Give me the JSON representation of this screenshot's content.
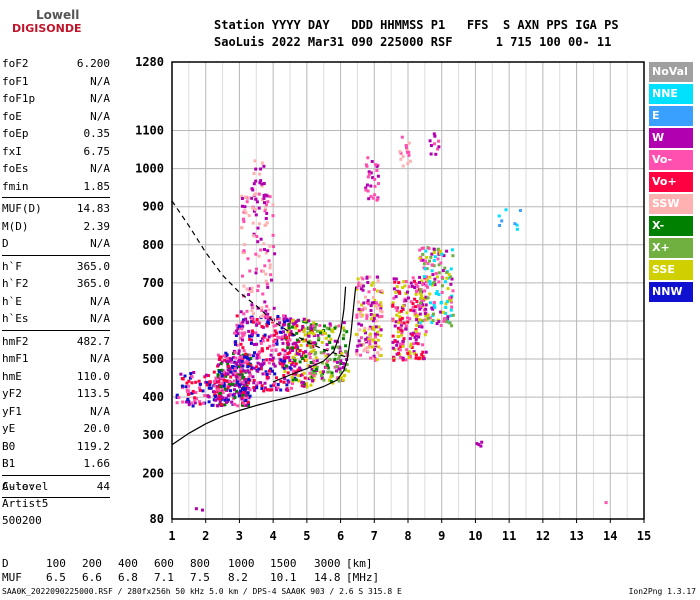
{
  "logo": {
    "line1": "Lowell",
    "line2": "DIGISONDE"
  },
  "header": {
    "line1": "Station YYYY DAY   DDD HHMMSS P1   FFS  S AXN PPS IGA PS",
    "line2": "SaoLuis 2022 Mar31 090 225000 RSF      1 715 100 00- 11"
  },
  "params": [
    {
      "label": "foF2",
      "value": "6.200"
    },
    {
      "label": "foF1",
      "value": "N/A"
    },
    {
      "label": "foF1p",
      "value": "N/A"
    },
    {
      "label": "foE",
      "value": "N/A"
    },
    {
      "label": "foEp",
      "value": "0.35"
    },
    {
      "label": "fxI",
      "value": "6.75"
    },
    {
      "label": "foEs",
      "value": "N/A"
    },
    {
      "label": "fmin",
      "value": "1.85"
    },
    {
      "sep": true
    },
    {
      "label": "MUF(D)",
      "value": "14.83"
    },
    {
      "label": "M(D)",
      "value": "2.39"
    },
    {
      "label": "D",
      "value": "N/A"
    },
    {
      "sep": true
    },
    {
      "label": "h`F",
      "value": "365.0"
    },
    {
      "label": "h`F2",
      "value": "365.0"
    },
    {
      "label": "h`E",
      "value": "N/A"
    },
    {
      "label": "h`Es",
      "value": "N/A"
    },
    {
      "sep": true
    },
    {
      "label": "hmF2",
      "value": "482.7"
    },
    {
      "label": "hmF1",
      "value": "N/A"
    },
    {
      "label": "hmE",
      "value": "110.0"
    },
    {
      "label": "yF2",
      "value": "113.5"
    },
    {
      "label": "yF1",
      "value": "N/A"
    },
    {
      "label": "yE",
      "value": "20.0"
    },
    {
      "label": "B0",
      "value": "119.2"
    },
    {
      "label": "B1",
      "value": "1.66"
    },
    {
      "sep": true
    },
    {
      "label": "C-level",
      "value": "44"
    },
    {
      "sep": true
    }
  ],
  "autoscaling": {
    "line1": "Auto:",
    "line2": "Artist5",
    "line3": "500200"
  },
  "legend": [
    {
      "label": "NoVal",
      "color": "#a0a0a0"
    },
    {
      "label": "NNE",
      "color": "#00e0ff"
    },
    {
      "label": "E",
      "color": "#3aa0ff"
    },
    {
      "label": "W",
      "color": "#b000b0"
    },
    {
      "label": "Vo-",
      "color": "#ff50b0"
    },
    {
      "label": "Vo+",
      "color": "#ff0040"
    },
    {
      "label": "SSW",
      "color": "#ffb0b0"
    },
    {
      "label": "X-",
      "color": "#008000"
    },
    {
      "label": "X+",
      "color": "#70b040"
    },
    {
      "label": "SSE",
      "color": "#d0d000"
    },
    {
      "label": "NNW",
      "color": "#1010d0"
    }
  ],
  "muf_table": {
    "d_label": "D",
    "d_values": [
      "100",
      "200",
      "400",
      "600",
      "800",
      "1000",
      "1500",
      "3000"
    ],
    "d_unit": "[km]",
    "muf_label": "MUF",
    "muf_values": [
      "6.5",
      "6.6",
      "6.8",
      "7.1",
      "7.5",
      "8.2",
      "10.1",
      "14.8"
    ],
    "muf_unit": "[MHz]"
  },
  "footer": {
    "left": "SAA0K_2022090225000.RSF / 280fx256h 50 kHz 5.0 km / DPS-4 SAA0K 903 / 2.6 S 315.8 E",
    "right": "Ion2Png 1.3.17"
  },
  "chart_data": {
    "type": "scatter",
    "x_ticks": [
      1,
      2,
      3,
      4,
      5,
      6,
      7,
      8,
      9,
      10,
      11,
      12,
      13,
      14,
      15
    ],
    "y_ticks": [
      80,
      200,
      300,
      400,
      500,
      600,
      700,
      800,
      900,
      1000,
      1100,
      1280
    ],
    "xlim": [
      1,
      15
    ],
    "ylim": [
      80,
      1280
    ],
    "grid": true,
    "echo_clusters": [
      {
        "fmin": 1.1,
        "fmax": 2.5,
        "hmin": 380,
        "hmax": 470,
        "n": 110,
        "colors": [
          "#b000b0",
          "#ff0040",
          "#1010d0",
          "#ff50b0"
        ]
      },
      {
        "fmin": 2.3,
        "fmax": 3.3,
        "hmin": 380,
        "hmax": 520,
        "n": 240,
        "colors": [
          "#b000b0",
          "#ff0040",
          "#ff50b0",
          "#1010d0",
          "#008000"
        ]
      },
      {
        "fmin": 2.8,
        "fmax": 4.6,
        "hmin": 420,
        "hmax": 620,
        "n": 320,
        "colors": [
          "#b000b0",
          "#ff50b0",
          "#ff0040",
          "#1010d0"
        ]
      },
      {
        "fmin": 3.0,
        "fmax": 4.0,
        "hmin": 600,
        "hmax": 940,
        "n": 120,
        "colors": [
          "#b000b0",
          "#ff50b0",
          "#ffb0b0"
        ]
      },
      {
        "fmin": 3.3,
        "fmax": 3.7,
        "hmin": 900,
        "hmax": 1030,
        "n": 25,
        "colors": [
          "#ffb0b0",
          "#b000b0"
        ]
      },
      {
        "fmin": 4.3,
        "fmax": 5.2,
        "hmin": 430,
        "hmax": 610,
        "n": 150,
        "colors": [
          "#b000b0",
          "#ff0040",
          "#d0d000",
          "#008000"
        ]
      },
      {
        "fmin": 5.0,
        "fmax": 6.2,
        "hmin": 440,
        "hmax": 600,
        "n": 160,
        "colors": [
          "#b000b0",
          "#d0d000",
          "#ff50b0",
          "#008000",
          "#70b040"
        ]
      },
      {
        "fmin": 6.4,
        "fmax": 7.2,
        "hmin": 500,
        "hmax": 720,
        "n": 150,
        "colors": [
          "#b000b0",
          "#ff50b0",
          "#d0d000",
          "#ffb0b0"
        ]
      },
      {
        "fmin": 7.5,
        "fmax": 8.5,
        "hmin": 500,
        "hmax": 720,
        "n": 200,
        "colors": [
          "#b000b0",
          "#ff0040",
          "#d0d000",
          "#ff50b0"
        ]
      },
      {
        "fmin": 8.3,
        "fmax": 9.3,
        "hmin": 590,
        "hmax": 800,
        "n": 150,
        "colors": [
          "#d0d000",
          "#b000b0",
          "#ff50b0",
          "#00e0ff",
          "#70b040"
        ]
      },
      {
        "fmin": 6.7,
        "fmax": 7.1,
        "hmin": 920,
        "hmax": 1040,
        "n": 30,
        "colors": [
          "#b000b0",
          "#ff50b0"
        ]
      },
      {
        "fmin": 7.7,
        "fmax": 8.1,
        "hmin": 1000,
        "hmax": 1090,
        "n": 15,
        "colors": [
          "#ff50b0",
          "#ffb0b0"
        ]
      },
      {
        "fmin": 8.6,
        "fmax": 8.9,
        "hmin": 1040,
        "hmax": 1110,
        "n": 10,
        "colors": [
          "#ff50b0",
          "#b000b0"
        ]
      },
      {
        "fmin": 10.6,
        "fmax": 11.3,
        "hmin": 840,
        "hmax": 900,
        "n": 8,
        "colors": [
          "#00e0ff",
          "#3aa0ff"
        ]
      },
      {
        "fmin": 10.0,
        "fmax": 10.2,
        "hmin": 270,
        "hmax": 290,
        "n": 4,
        "colors": [
          "#b000b0"
        ]
      },
      {
        "fmin": 1.6,
        "fmax": 1.9,
        "hmin": 100,
        "hmax": 115,
        "n": 2,
        "colors": [
          "#b000b0"
        ]
      },
      {
        "fmin": 13.8,
        "fmax": 13.9,
        "hmin": 125,
        "hmax": 130,
        "n": 1,
        "colors": [
          "#ff50b0"
        ]
      }
    ],
    "profile_curve": [
      [
        1.0,
        275
      ],
      [
        1.5,
        305
      ],
      [
        2.0,
        330
      ],
      [
        2.5,
        350
      ],
      [
        3.0,
        365
      ],
      [
        3.5,
        378
      ],
      [
        4.0,
        390
      ],
      [
        4.5,
        400
      ],
      [
        5.0,
        412
      ],
      [
        5.5,
        428
      ],
      [
        5.9,
        445
      ],
      [
        6.1,
        470
      ],
      [
        6.2,
        500
      ],
      [
        6.3,
        560
      ],
      [
        6.4,
        650
      ],
      [
        6.45,
        690
      ]
    ],
    "profile_curve_upper": [
      [
        4.0,
        440
      ],
      [
        4.5,
        458
      ],
      [
        5.0,
        475
      ],
      [
        5.5,
        495
      ],
      [
        5.8,
        520
      ],
      [
        6.0,
        570
      ],
      [
        6.1,
        630
      ],
      [
        6.15,
        690
      ]
    ],
    "dashed_curve": [
      [
        1.0,
        915
      ],
      [
        1.5,
        850
      ],
      [
        2.0,
        780
      ],
      [
        2.5,
        720
      ],
      [
        3.0,
        675
      ],
      [
        3.5,
        640
      ],
      [
        4.0,
        600
      ],
      [
        4.5,
        570
      ],
      [
        5.0,
        545
      ],
      [
        5.5,
        525
      ],
      [
        6.0,
        510
      ],
      [
        6.2,
        505
      ]
    ]
  }
}
